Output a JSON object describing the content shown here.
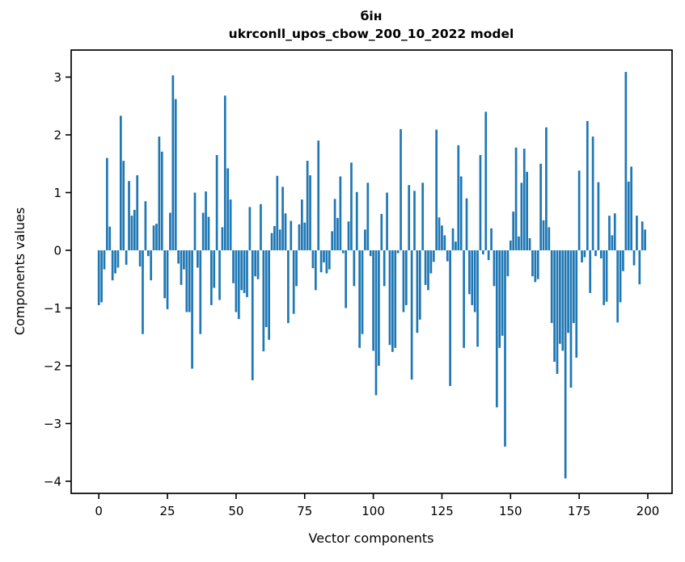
{
  "figure": {
    "title_line1": "бін",
    "title_line2": "ukrconll_upos_cbow_200_10_2022 model",
    "xlabel": "Vector components",
    "ylabel": "Components values"
  },
  "chart_data": {
    "type": "bar",
    "title": "бін\nukrconll_upos_cbow_200_10_2022 model",
    "xlabel": "Vector components",
    "ylabel": "Components values",
    "bar_color": "#1f77b4",
    "axis_color": "#000000",
    "background_color": "#ffffff",
    "grid": false,
    "legend": null,
    "n_bars": 200,
    "xlim": [
      -10.1,
      208.8
    ],
    "ylim": [
      -4.2,
      3.47
    ],
    "x_tick_values": [
      0,
      25,
      50,
      75,
      100,
      125,
      150,
      175,
      200
    ],
    "x_tick_labels": [
      "0",
      "25",
      "50",
      "75",
      "100",
      "125",
      "150",
      "175",
      "200"
    ],
    "y_tick_values": [
      3,
      2,
      1,
      0,
      -1,
      -2,
      -3,
      -4
    ],
    "y_tick_labels": [
      "3",
      "2",
      "1",
      "0",
      "−1",
      "−2",
      "−3",
      "−4"
    ],
    "values": [
      -0.95,
      -0.9,
      -0.33,
      1.6,
      0.41,
      -0.52,
      -0.4,
      -0.3,
      2.33,
      1.55,
      -0.25,
      1.2,
      0.6,
      0.7,
      1.3,
      -0.28,
      -1.45,
      0.85,
      -0.1,
      -0.52,
      0.43,
      0.46,
      1.97,
      1.71,
      -0.83,
      -1.02,
      0.65,
      3.03,
      2.62,
      -0.23,
      -0.6,
      -0.33,
      -1.07,
      -1.07,
      -2.05,
      1.0,
      -0.3,
      -1.45,
      0.65,
      1.02,
      0.58,
      -0.95,
      -0.65,
      1.65,
      -0.86,
      0.4,
      2.68,
      1.42,
      0.88,
      -0.57,
      -1.07,
      -1.19,
      -0.69,
      -0.74,
      -0.81,
      0.75,
      -2.25,
      -0.45,
      -0.5,
      0.8,
      -1.75,
      -1.33,
      -1.55,
      0.3,
      0.42,
      1.29,
      0.36,
      1.1,
      0.64,
      -1.26,
      0.51,
      -1.1,
      -0.62,
      0.45,
      0.88,
      0.48,
      1.55,
      1.3,
      -0.31,
      -0.69,
      1.9,
      -0.38,
      -0.21,
      -0.4,
      -0.33,
      0.33,
      0.89,
      0.56,
      1.28,
      -0.05,
      -1.0,
      0.5,
      1.52,
      -0.62,
      1.01,
      -1.69,
      -1.45,
      0.36,
      1.17,
      -0.1,
      -1.74,
      -2.51,
      -2.0,
      0.63,
      -0.62,
      1.0,
      -1.64,
      -1.76,
      -1.69,
      -0.05,
      2.1,
      -1.07,
      -0.95,
      1.13,
      -2.24,
      1.03,
      -1.43,
      -1.2,
      1.17,
      -0.6,
      -0.69,
      -0.4,
      -0.2,
      2.09,
      0.57,
      0.43,
      0.26,
      -0.19,
      -2.35,
      0.38,
      0.15,
      1.82,
      1.28,
      -1.69,
      0.9,
      -0.76,
      -0.95,
      -1.07,
      -1.67,
      1.65,
      -0.07,
      2.4,
      -0.17,
      0.38,
      -0.62,
      -2.72,
      -1.69,
      -1.48,
      -3.4,
      -0.45,
      0.17,
      0.67,
      1.78,
      0.24,
      1.17,
      1.76,
      1.36,
      0.21,
      -0.45,
      -0.55,
      -0.5,
      1.5,
      0.52,
      2.13,
      0.4,
      -1.26,
      -1.93,
      -2.14,
      -1.62,
      -1.74,
      -3.95,
      -1.43,
      -2.38,
      -1.26,
      -1.86,
      1.38,
      -0.21,
      -0.12,
      2.24,
      -0.74,
      1.97,
      -0.1,
      1.18,
      -0.14,
      -0.95,
      -0.89,
      0.6,
      0.26,
      0.64,
      -1.25,
      -0.9,
      -0.36,
      3.09,
      1.19,
      1.45,
      -0.26,
      0.6,
      -0.59,
      0.5,
      0.36
    ]
  }
}
